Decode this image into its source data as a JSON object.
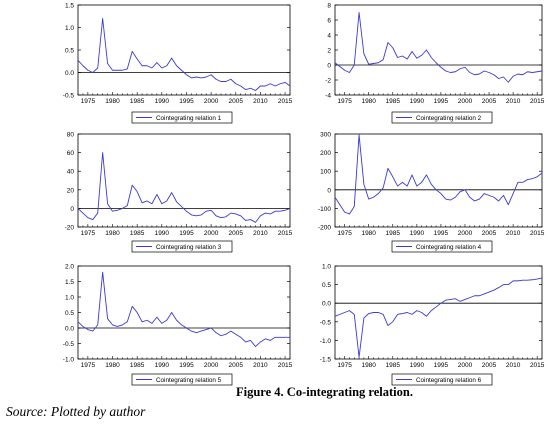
{
  "figure": {
    "caption": "Figure 4. Co-integrating relation.",
    "source": "Source: Plotted by author",
    "series_color": "#3a3ad6",
    "zero_line_color": "#000000"
  },
  "chart_data": [
    {
      "type": "line",
      "x": [
        1973,
        1974,
        1975,
        1976,
        1977,
        1978,
        1979,
        1980,
        1981,
        1982,
        1983,
        1984,
        1985,
        1986,
        1987,
        1988,
        1989,
        1990,
        1991,
        1992,
        1993,
        1994,
        1995,
        1996,
        1997,
        1998,
        1999,
        2000,
        2001,
        2002,
        2003,
        2004,
        2005,
        2006,
        2007,
        2008,
        2009,
        2010,
        2011,
        2012,
        2013,
        2014,
        2015,
        2016
      ],
      "series": [
        {
          "name": "Cointegrating relation 1",
          "values": [
            0.27,
            0.15,
            0.05,
            0.0,
            0.1,
            1.2,
            0.2,
            0.05,
            0.05,
            0.05,
            0.08,
            0.47,
            0.3,
            0.15,
            0.15,
            0.1,
            0.22,
            0.1,
            0.15,
            0.32,
            0.15,
            0.05,
            -0.05,
            -0.12,
            -0.1,
            -0.12,
            -0.1,
            -0.05,
            -0.15,
            -0.2,
            -0.2,
            -0.15,
            -0.25,
            -0.3,
            -0.38,
            -0.35,
            -0.4,
            -0.3,
            -0.3,
            -0.25,
            -0.3,
            -0.25,
            -0.22,
            -0.3
          ]
        }
      ],
      "yticks": [
        "1.5",
        "1.0",
        "0.5",
        "0.0",
        "-0.5"
      ],
      "ylim": [
        -0.5,
        1.5
      ],
      "xticks": [
        "1975",
        "1980",
        "1985",
        "1990",
        "1995",
        "2000",
        "2005",
        "2010",
        "2015"
      ]
    },
    {
      "type": "line",
      "x": [
        1973,
        1974,
        1975,
        1976,
        1977,
        1978,
        1979,
        1980,
        1981,
        1982,
        1983,
        1984,
        1985,
        1986,
        1987,
        1988,
        1989,
        1990,
        1991,
        1992,
        1993,
        1994,
        1995,
        1996,
        1997,
        1998,
        1999,
        2000,
        2001,
        2002,
        2003,
        2004,
        2005,
        2006,
        2007,
        2008,
        2009,
        2010,
        2011,
        2012,
        2013,
        2014,
        2015,
        2016
      ],
      "series": [
        {
          "name": "Cointegrating relation 2",
          "values": [
            0.3,
            -0.2,
            -0.7,
            -1.0,
            0.0,
            7.0,
            1.5,
            0.1,
            0.2,
            0.3,
            0.7,
            3.0,
            2.3,
            1.0,
            1.2,
            0.8,
            1.8,
            0.9,
            1.3,
            2.0,
            1.0,
            0.3,
            -0.3,
            -0.8,
            -1.0,
            -0.9,
            -0.5,
            -0.3,
            -1.0,
            -1.3,
            -1.2,
            -0.8,
            -1.0,
            -1.3,
            -1.8,
            -1.6,
            -2.3,
            -1.5,
            -1.2,
            -1.3,
            -0.9,
            -1.0,
            -0.9,
            -0.8
          ]
        }
      ],
      "yticks": [
        "8",
        "6",
        "4",
        "2",
        "0",
        "-2",
        "-4"
      ],
      "ylim": [
        -4,
        8
      ],
      "xticks": [
        "1975",
        "1980",
        "1985",
        "1990",
        "1995",
        "2000",
        "2005",
        "2010",
        "2015"
      ]
    },
    {
      "type": "line",
      "x": [
        1973,
        1974,
        1975,
        1976,
        1977,
        1978,
        1979,
        1980,
        1981,
        1982,
        1983,
        1984,
        1985,
        1986,
        1987,
        1988,
        1989,
        1990,
        1991,
        1992,
        1993,
        1994,
        1995,
        1996,
        1997,
        1998,
        1999,
        2000,
        2001,
        2002,
        2003,
        2004,
        2005,
        2006,
        2007,
        2008,
        2009,
        2010,
        2011,
        2012,
        2013,
        2014,
        2015,
        2016
      ],
      "series": [
        {
          "name": "Cointegrating relation 3",
          "values": [
            0,
            -5,
            -10,
            -12,
            -5,
            60,
            5,
            -3,
            -2,
            0,
            3,
            25,
            18,
            6,
            8,
            5,
            15,
            5,
            8,
            17,
            7,
            2,
            -3,
            -7,
            -8,
            -7,
            -3,
            -2,
            -8,
            -10,
            -9,
            -5,
            -6,
            -8,
            -13,
            -12,
            -15,
            -8,
            -5,
            -6,
            -3,
            -3,
            -2,
            0
          ]
        }
      ],
      "yticks": [
        "80",
        "60",
        "40",
        "20",
        "0",
        "-20"
      ],
      "ylim": [
        -20,
        80
      ],
      "xticks": [
        "1975",
        "1980",
        "1985",
        "1990",
        "1995",
        "2000",
        "2005",
        "2010",
        "2015"
      ]
    },
    {
      "type": "line",
      "x": [
        1973,
        1974,
        1975,
        1976,
        1977,
        1978,
        1979,
        1980,
        1981,
        1982,
        1983,
        1984,
        1985,
        1986,
        1987,
        1988,
        1989,
        1990,
        1991,
        1992,
        1993,
        1994,
        1995,
        1996,
        1997,
        1998,
        1999,
        2000,
        2001,
        2002,
        2003,
        2004,
        2005,
        2006,
        2007,
        2008,
        2009,
        2010,
        2011,
        2012,
        2013,
        2014,
        2015,
        2016
      ],
      "series": [
        {
          "name": "Cointegrating relation 4",
          "values": [
            -40,
            -80,
            -120,
            -130,
            -90,
            295,
            30,
            -50,
            -40,
            -20,
            10,
            115,
            70,
            20,
            40,
            20,
            80,
            20,
            40,
            80,
            30,
            0,
            -20,
            -50,
            -55,
            -40,
            -10,
            0,
            -40,
            -60,
            -50,
            -20,
            -30,
            -40,
            -60,
            -30,
            -80,
            -20,
            40,
            40,
            55,
            60,
            70,
            90
          ]
        }
      ],
      "yticks": [
        "300",
        "200",
        "100",
        "0",
        "-100",
        "-200"
      ],
      "ylim": [
        -200,
        300
      ],
      "xticks": [
        "1975",
        "1980",
        "1985",
        "1990",
        "1995",
        "2000",
        "2005",
        "2010",
        "2015"
      ]
    },
    {
      "type": "line",
      "x": [
        1973,
        1974,
        1975,
        1976,
        1977,
        1978,
        1979,
        1980,
        1981,
        1982,
        1983,
        1984,
        1985,
        1986,
        1987,
        1988,
        1989,
        1990,
        1991,
        1992,
        1993,
        1994,
        1995,
        1996,
        1997,
        1998,
        1999,
        2000,
        2001,
        2002,
        2003,
        2004,
        2005,
        2006,
        2007,
        2008,
        2009,
        2010,
        2011,
        2012,
        2013,
        2014,
        2015,
        2016
      ],
      "series": [
        {
          "name": "Cointegrating relation 5",
          "values": [
            0.2,
            0.05,
            -0.05,
            -0.1,
            0.1,
            1.8,
            0.3,
            0.1,
            0.05,
            0.1,
            0.2,
            0.7,
            0.5,
            0.2,
            0.25,
            0.15,
            0.35,
            0.15,
            0.25,
            0.5,
            0.25,
            0.1,
            0.0,
            -0.1,
            -0.15,
            -0.1,
            -0.05,
            0.0,
            -0.15,
            -0.25,
            -0.2,
            -0.1,
            -0.2,
            -0.3,
            -0.45,
            -0.4,
            -0.6,
            -0.45,
            -0.35,
            -0.4,
            -0.3,
            -0.3,
            -0.3,
            -0.3
          ]
        }
      ],
      "yticks": [
        "2.0",
        "1.5",
        "1.0",
        "0.5",
        "0.0",
        "-0.5",
        "-1.0"
      ],
      "ylim": [
        -1.0,
        2.0
      ],
      "xticks": [
        "1975",
        "1980",
        "1985",
        "1990",
        "1995",
        "2000",
        "2005",
        "2010",
        "2015"
      ]
    },
    {
      "type": "line",
      "x": [
        1973,
        1974,
        1975,
        1976,
        1977,
        1978,
        1979,
        1980,
        1981,
        1982,
        1983,
        1984,
        1985,
        1986,
        1987,
        1988,
        1989,
        1990,
        1991,
        1992,
        1993,
        1994,
        1995,
        1996,
        1997,
        1998,
        1999,
        2000,
        2001,
        2002,
        2003,
        2004,
        2005,
        2006,
        2007,
        2008,
        2009,
        2010,
        2011,
        2012,
        2013,
        2014,
        2015,
        2016
      ],
      "series": [
        {
          "name": "Cointegrating relation 6",
          "values": [
            -0.35,
            -0.3,
            -0.25,
            -0.2,
            -0.3,
            -1.45,
            -0.4,
            -0.28,
            -0.25,
            -0.25,
            -0.3,
            -0.6,
            -0.5,
            -0.3,
            -0.28,
            -0.25,
            -0.3,
            -0.2,
            -0.25,
            -0.35,
            -0.2,
            -0.1,
            0.0,
            0.08,
            0.1,
            0.12,
            0.05,
            0.1,
            0.15,
            0.2,
            0.2,
            0.25,
            0.3,
            0.35,
            0.42,
            0.5,
            0.5,
            0.6,
            0.6,
            0.62,
            0.62,
            0.63,
            0.65,
            0.68
          ]
        }
      ],
      "yticks": [
        "1.0",
        "0.5",
        "0.0",
        "-0.5",
        "-1.0",
        "-1.5"
      ],
      "ylim": [
        -1.5,
        1.0
      ],
      "xticks": [
        "1975",
        "1980",
        "1985",
        "1990",
        "1995",
        "2000",
        "2005",
        "2010",
        "2015"
      ]
    }
  ]
}
